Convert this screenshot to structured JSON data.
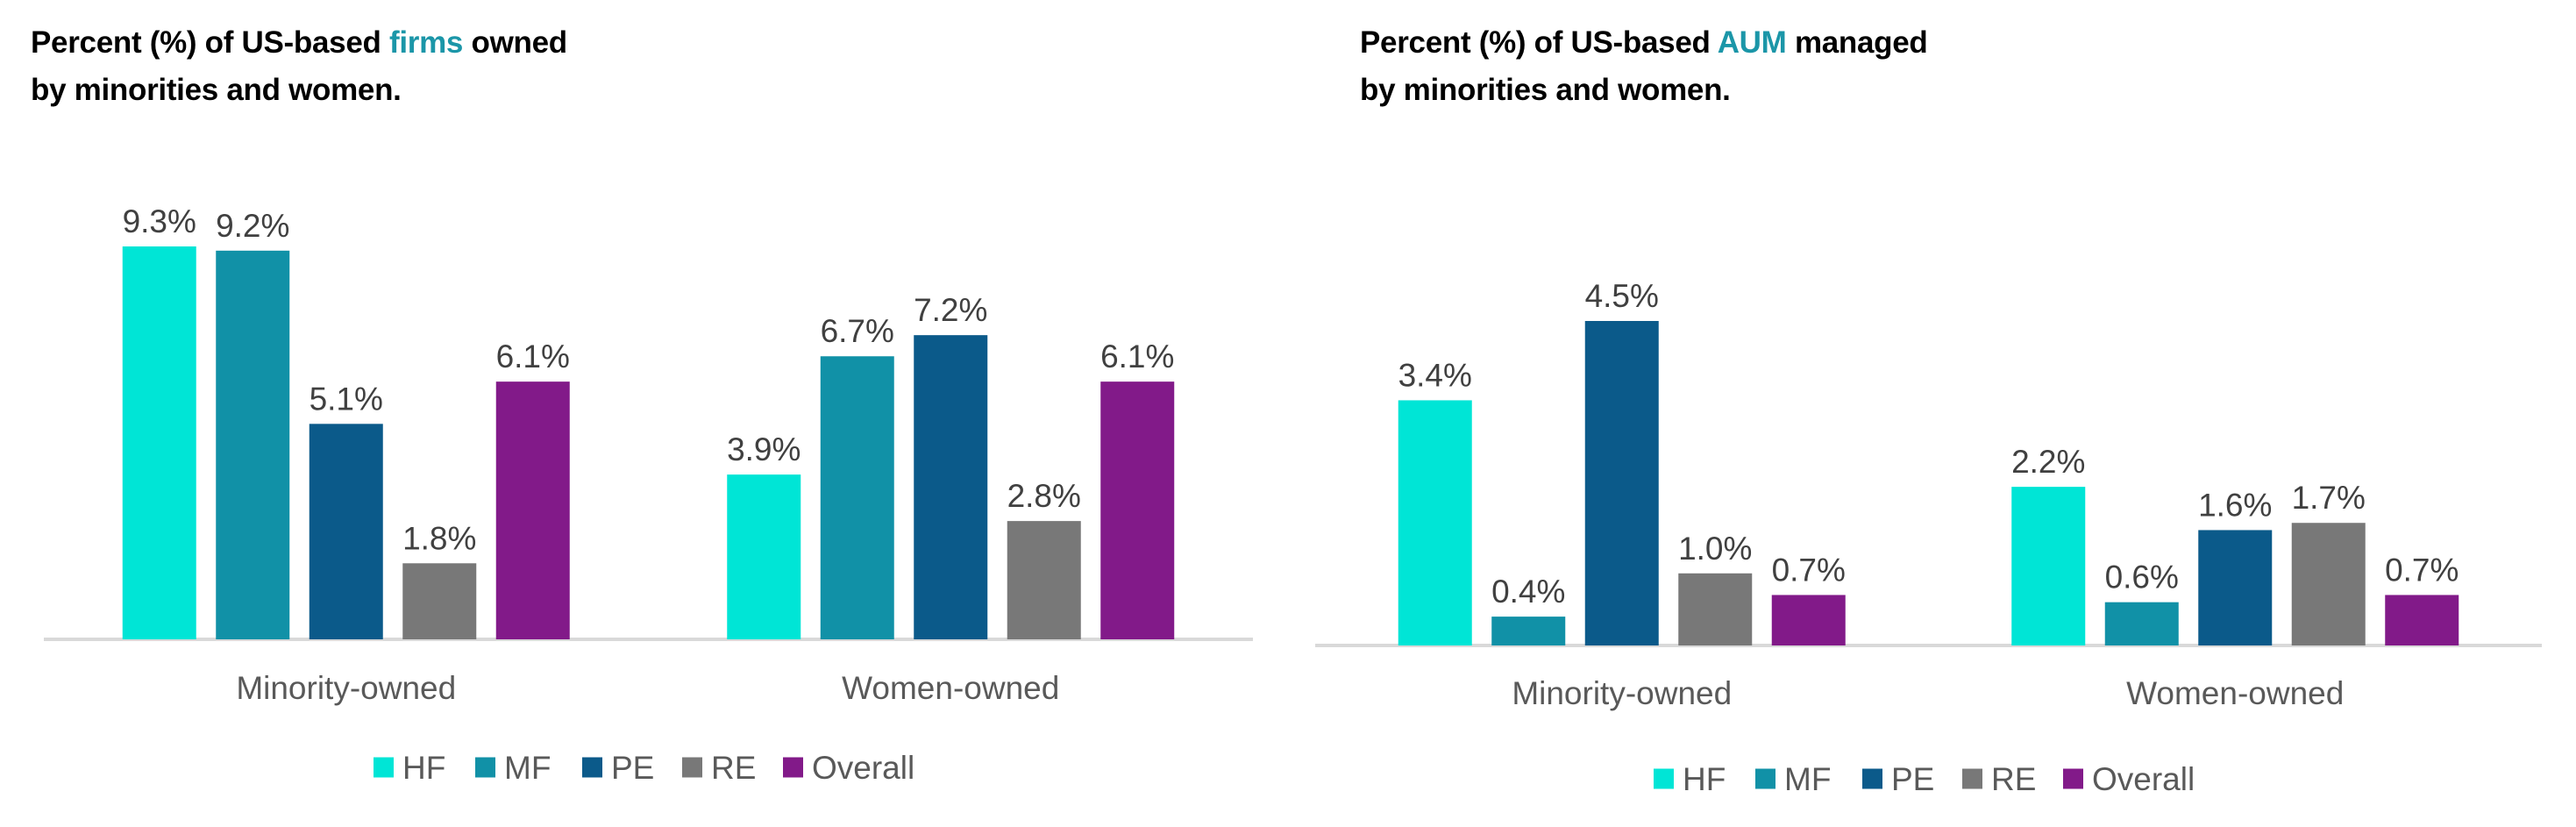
{
  "colors": {
    "HF": "#00E5D6",
    "MF": "#1191A7",
    "PE": "#0B5A8A",
    "RE": "#787878",
    "Overall": "#821A89",
    "title_accent": "#1B96A8"
  },
  "chart_data": [
    {
      "type": "bar",
      "title": "Percent (%) of US-based firms owned by minorities and women.",
      "title_parts": {
        "before": "Percent (%) of US-based ",
        "accent": "firms",
        "after_line1": " owned",
        "line2": "by minorities and women."
      },
      "categories": [
        "Minority-owned",
        "Women-owned"
      ],
      "series": [
        {
          "name": "HF",
          "values": [
            9.3,
            3.9
          ],
          "labels": [
            "9.3%",
            "3.9%"
          ]
        },
        {
          "name": "MF",
          "values": [
            9.2,
            6.7
          ],
          "labels": [
            "9.2%",
            "6.7%"
          ]
        },
        {
          "name": "PE",
          "values": [
            5.1,
            7.2
          ],
          "labels": [
            "5.1%",
            "7.2%"
          ]
        },
        {
          "name": "RE",
          "values": [
            1.8,
            2.8
          ],
          "labels": [
            "1.8%",
            "2.8%"
          ]
        },
        {
          "name": "Overall",
          "values": [
            6.1,
            6.1
          ],
          "labels": [
            "6.1%",
            "6.1%"
          ]
        }
      ],
      "xlabel": "",
      "ylabel": "",
      "ylim": [
        0,
        9.3
      ],
      "grid": false,
      "y_axis_visible": false,
      "legend": [
        "HF",
        "MF",
        "PE",
        "RE",
        "Overall"
      ],
      "legend_position": "bottom"
    },
    {
      "type": "bar",
      "title": "Percent (%) of US-based AUM managed by minorities and women.",
      "title_parts": {
        "before": "Percent (%) of US-based ",
        "accent": "AUM",
        "after_line1": " managed",
        "line2": "by minorities and women."
      },
      "categories": [
        "Minority-owned",
        "Women-owned"
      ],
      "series": [
        {
          "name": "HF",
          "values": [
            3.4,
            2.2
          ],
          "labels": [
            "3.4%",
            "2.2%"
          ]
        },
        {
          "name": "MF",
          "values": [
            0.4,
            0.6
          ],
          "labels": [
            "0.4%",
            "0.6%"
          ]
        },
        {
          "name": "PE",
          "values": [
            4.5,
            1.6
          ],
          "labels": [
            "4.5%",
            "1.6%"
          ]
        },
        {
          "name": "RE",
          "values": [
            1.0,
            1.7
          ],
          "labels": [
            "1.0%",
            "1.7%"
          ]
        },
        {
          "name": "Overall",
          "values": [
            0.7,
            0.7
          ],
          "labels": [
            "0.7%",
            "0.7%"
          ]
        }
      ],
      "xlabel": "",
      "ylabel": "",
      "ylim": [
        0,
        4.5
      ],
      "grid": false,
      "y_axis_visible": false,
      "legend": [
        "HF",
        "MF",
        "PE",
        "RE",
        "Overall"
      ],
      "legend_position": "bottom"
    }
  ]
}
